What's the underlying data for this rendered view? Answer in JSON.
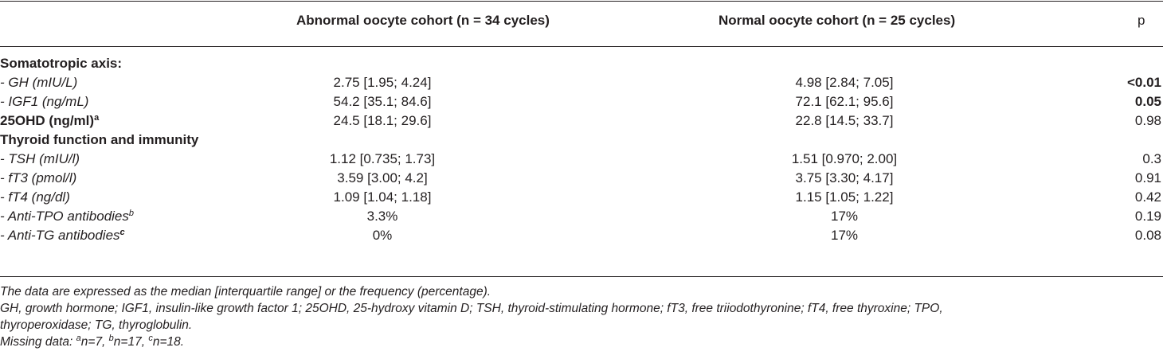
{
  "header": {
    "col1": "Abnormal oocyte cohort (n = 34 cycles)",
    "col2": "Normal oocyte cohort (n = 25 cycles)",
    "p": "p"
  },
  "rows": [
    {
      "label": "Somatotropic axis:",
      "sup": "",
      "v1": "",
      "v2": "",
      "p": ""
    },
    {
      "label": "- GH (mIU/L)",
      "sup": "",
      "v1": "2.75 [1.95; 4.24]",
      "v2": "4.98 [2.84; 7.05]",
      "p": "<0.01"
    },
    {
      "label": "- IGF1 (ng/mL)",
      "sup": "",
      "v1": "54.2 [35.1; 84.6]",
      "v2": "72.1 [62.1; 95.6]",
      "p": "0.05"
    },
    {
      "label": "25OHD (ng/ml)",
      "sup": "a",
      "v1": "24.5 [18.1; 29.6]",
      "v2": "22.8 [14.5; 33.7]",
      "p": "0.98"
    },
    {
      "label": "Thyroid function and immunity",
      "sup": "",
      "v1": "",
      "v2": "",
      "p": ""
    },
    {
      "label": "- TSH (mIU/l)",
      "sup": "",
      "v1": "1.12 [0.735; 1.73]",
      "v2": "1.51 [0.970; 2.00]",
      "p": "0.3"
    },
    {
      "label": "- fT3 (pmol/l)",
      "sup": "",
      "v1": "3.59 [3.00; 4.2]",
      "v2": "3.75 [3.30; 4.17]",
      "p": "0.91"
    },
    {
      "label": "- fT4 (ng/dl)",
      "sup": "",
      "v1": "1.09 [1.04; 1.18]",
      "v2": "1.15 [1.05; 1.22]",
      "p": "0.42"
    },
    {
      "label": "- Anti-TPO antibodies",
      "sup": "b",
      "v1": "3.3%",
      "v2": "17%",
      "p": "0.19"
    },
    {
      "label": "- Anti-TG antibodies",
      "sup": "c",
      "v1": "0%",
      "v2": "17%",
      "p": "0.08"
    }
  ],
  "notes": {
    "line1": "The data are expressed as the median [interquartile range] or the frequency (percentage).",
    "line2": "GH, growth hormone; IGF1, insulin-like growth factor 1; 25OHD, 25-hydroxy vitamin D; TSH, thyroid-stimulating hormone; fT3, free triiodothyronine; fT4, free thyroxine; TPO,",
    "line3": "thyroperoxidase; TG, thyroglobulin.",
    "missing_prefix": "Missing data: ",
    "sup_a": "a",
    "n_a": "n=7, ",
    "sup_b": "b",
    "n_b": "n=17, ",
    "sup_c": "c",
    "n_c": "n=18."
  }
}
